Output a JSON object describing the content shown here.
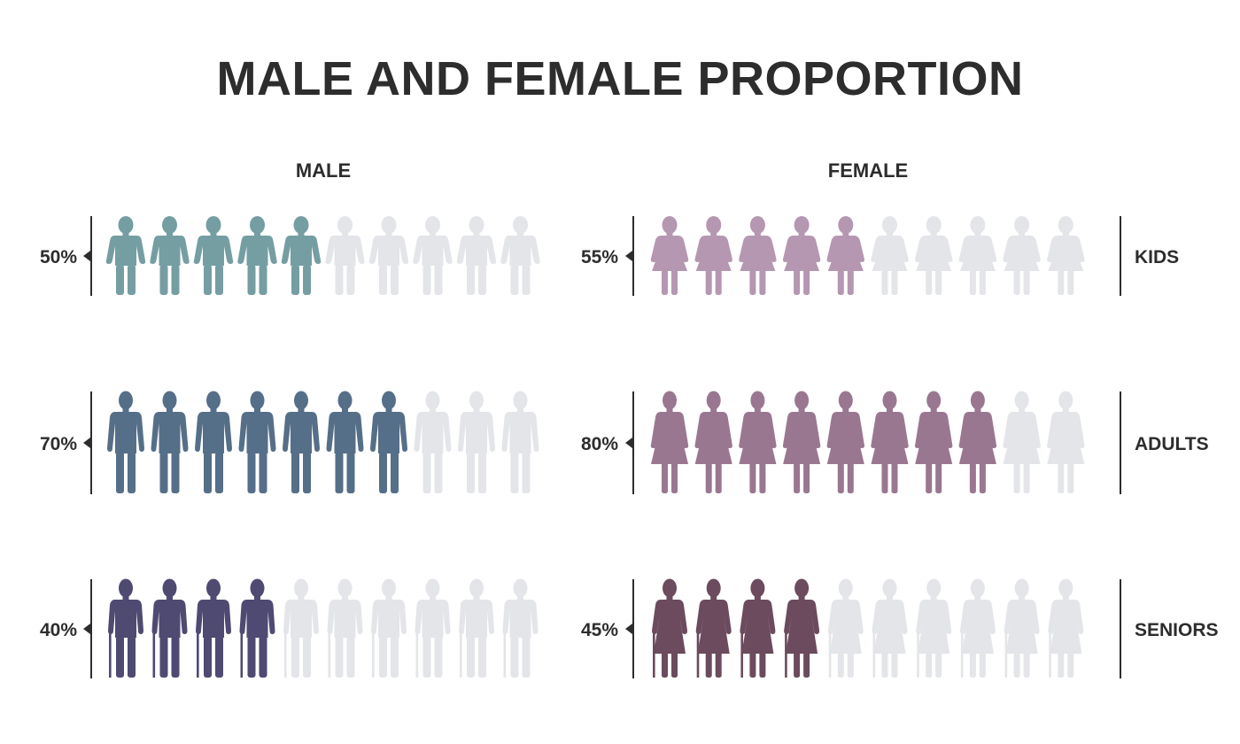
{
  "title": "MALE AND FEMALE PROPORTION",
  "male_header": "MALE",
  "female_header": "FEMALE",
  "inactive_color": "#e3e5e8",
  "chart_data": [
    {
      "type": "pictograph",
      "group": "MALE",
      "icon": "male-person-icon",
      "icons_per_row": 10,
      "rows": [
        {
          "category": "KIDS",
          "value": 50,
          "label": "50%",
          "color": "#759ea3",
          "icon": "male-kid-icon"
        },
        {
          "category": "ADULTS",
          "value": 70,
          "label": "70%",
          "color": "#566f88",
          "icon": "male-adult-icon"
        },
        {
          "category": "SENIORS",
          "value": 40,
          "label": "40%",
          "color": "#4e4a72",
          "icon": "male-senior-with-cane-icon"
        }
      ]
    },
    {
      "type": "pictograph",
      "group": "FEMALE",
      "icon": "female-person-icon",
      "icons_per_row": 10,
      "rows": [
        {
          "category": "KIDS",
          "value": 55,
          "label": "55%",
          "color": "#b597b2",
          "icon": "female-kid-icon"
        },
        {
          "category": "ADULTS",
          "value": 80,
          "label": "80%",
          "color": "#9a7790",
          "icon": "female-adult-icon"
        },
        {
          "category": "SENIORS",
          "value": 45,
          "label": "45%",
          "color": "#6b4b5d",
          "icon": "female-senior-with-cane-icon"
        }
      ]
    }
  ]
}
